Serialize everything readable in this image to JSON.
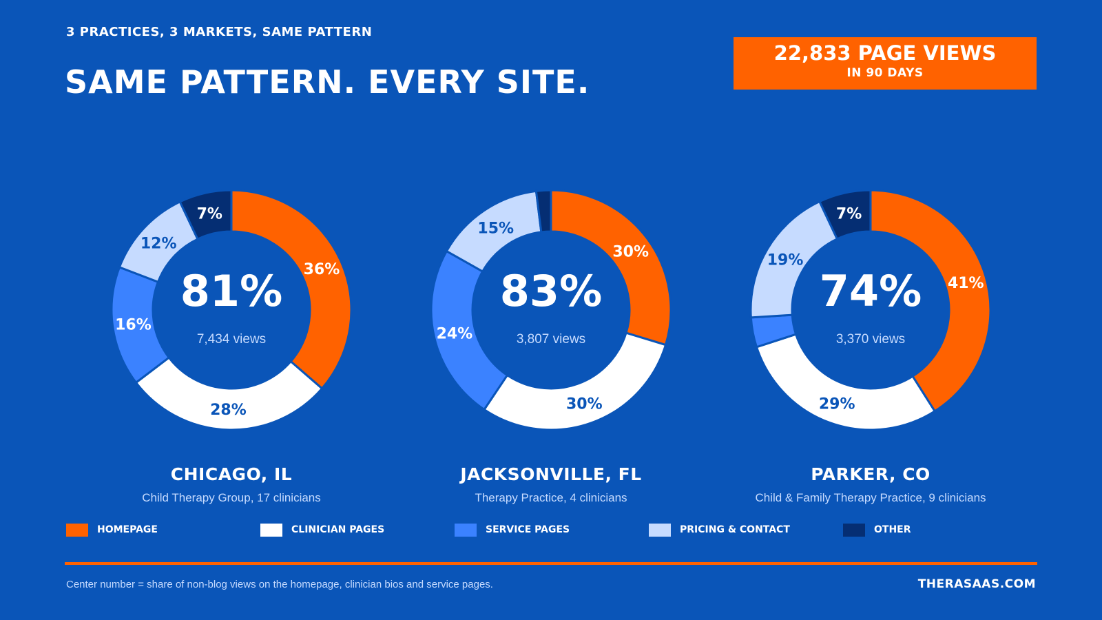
{
  "header": {
    "kicker": "3 PRACTICES, 3 MARKETS, SAME PATTERN",
    "title": "SAME PATTERN. EVERY SITE."
  },
  "badge": {
    "value": "22,833 PAGE VIEWS",
    "period": "IN 90 DAYS"
  },
  "colors": {
    "background": "#0A55B8",
    "homepage": "#FF6200",
    "clinician_pages": "#FFFFFF",
    "service_pages": "#3B82FF",
    "pricing_contact": "#C6DBFF",
    "other": "#052E73"
  },
  "chart_data": [
    {
      "type": "pie",
      "variant": "donut",
      "categories": [
        "Homepage",
        "Clinician Pages",
        "Service Pages",
        "Pricing & Contact",
        "Other"
      ],
      "values": [
        36,
        28,
        16,
        12,
        7
      ],
      "slice_labels": [
        "36%",
        "28%",
        "16%",
        "12%",
        "7%"
      ],
      "center_value": "81%",
      "center_subtitle": "7,434 views",
      "title": "CHICAGO, IL",
      "subtitle": "Child Therapy Group, 17 clinicians"
    },
    {
      "type": "pie",
      "variant": "donut",
      "categories": [
        "Homepage",
        "Clinician Pages",
        "Service Pages",
        "Pricing & Contact",
        "Other"
      ],
      "values": [
        30,
        30,
        24,
        15,
        2
      ],
      "slice_labels": [
        "30%",
        "30%",
        "24%",
        "15%",
        ""
      ],
      "center_value": "83%",
      "center_subtitle": "3,807 views",
      "title": "JACKSONVILLE, FL",
      "subtitle": "Therapy Practice, 4 clinicians"
    },
    {
      "type": "pie",
      "variant": "donut",
      "categories": [
        "Homepage",
        "Clinician Pages",
        "Service Pages",
        "Pricing & Contact",
        "Other"
      ],
      "values": [
        41,
        29,
        4,
        19,
        7
      ],
      "slice_labels": [
        "41%",
        "29%",
        "",
        "19%",
        "7%"
      ],
      "center_value": "74%",
      "center_subtitle": "3,370 views",
      "title": "PARKER, CO",
      "subtitle": "Child & Family Therapy Practice, 9 clinicians"
    }
  ],
  "legend": [
    {
      "label": "HOMEPAGE",
      "color": "#FF6200"
    },
    {
      "label": "CLINICIAN PAGES",
      "color": "#FFFFFF"
    },
    {
      "label": "SERVICE PAGES",
      "color": "#3B82FF"
    },
    {
      "label": "PRICING & CONTACT",
      "color": "#C6DBFF"
    },
    {
      "label": "OTHER",
      "color": "#052E73"
    }
  ],
  "footer": {
    "note": "Center number = share of non-blog views on the homepage, clinician bios and service pages.",
    "site": "THERASAAS.COM"
  }
}
